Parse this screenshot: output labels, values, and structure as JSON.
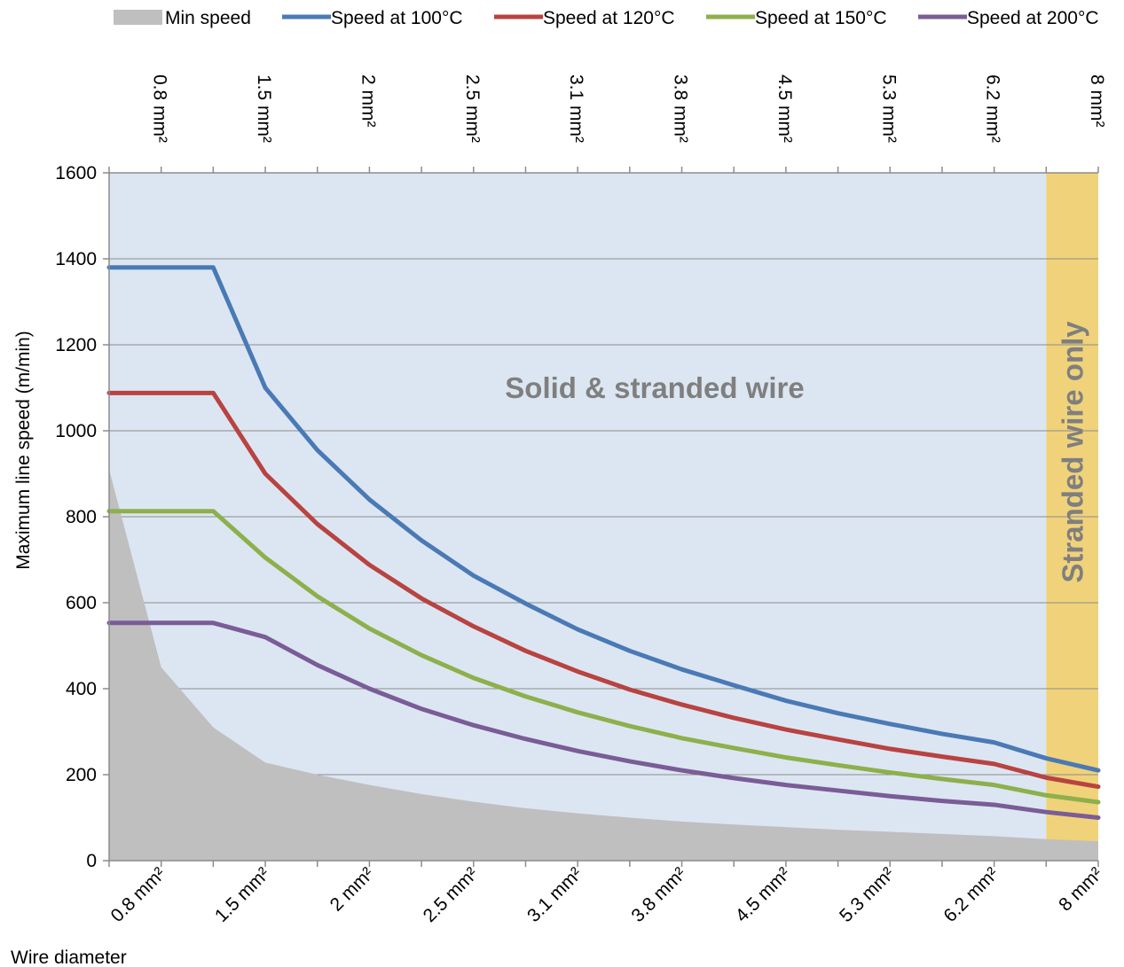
{
  "chart_data": {
    "type": "line",
    "title": "",
    "xlabel": "Wire diameter",
    "ylabel": "Maximum line speed (m/min)",
    "ylim": [
      0,
      1600
    ],
    "yticks": [
      "0",
      "200",
      "400",
      "600",
      "800",
      "1000",
      "1200",
      "1400",
      "1600"
    ],
    "grid": true,
    "legend_position": "top",
    "x_tick_labels": [
      "0.8 mm²",
      "1.5 mm²",
      "2 mm²",
      "2.5 mm²",
      "3.1 mm²",
      "3.8 mm²",
      "4.5 mm²",
      "5.3 mm²",
      "6.2 mm²",
      "8 mm²"
    ],
    "x_tick_positions": [
      1,
      3,
      5,
      7,
      9,
      11,
      13,
      15,
      17,
      19
    ],
    "x_range": [
      0,
      19
    ],
    "x": [
      0,
      1,
      2,
      3,
      4,
      5,
      6,
      7,
      8,
      9,
      10,
      11,
      12,
      13,
      14,
      15,
      16,
      17,
      18,
      19
    ],
    "series": [
      {
        "name": "Min speed",
        "style": "area",
        "color": "#bfbfbf",
        "values": [
          910,
          450,
          310,
          228,
          200,
          176,
          155,
          137,
          122,
          110,
          100,
          91,
          84,
          78,
          72,
          67,
          62,
          57,
          50,
          45
        ]
      },
      {
        "name": "Speed at 100°C",
        "style": "line",
        "color": "#4a7ab5",
        "values": [
          1380,
          1380,
          1380,
          1100,
          955,
          840,
          745,
          663,
          598,
          538,
          488,
          445,
          408,
          372,
          343,
          318,
          295,
          275,
          238,
          210
        ]
      },
      {
        "name": "Speed at 120°C",
        "style": "line",
        "color": "#b84340",
        "values": [
          1088,
          1088,
          1088,
          900,
          783,
          688,
          610,
          545,
          488,
          440,
          398,
          363,
          332,
          305,
          282,
          260,
          242,
          225,
          193,
          172
        ]
      },
      {
        "name": "Speed at 150°C",
        "style": "line",
        "color": "#8db04c",
        "values": [
          813,
          813,
          813,
          705,
          615,
          540,
          478,
          425,
          382,
          345,
          313,
          285,
          262,
          240,
          222,
          205,
          190,
          176,
          152,
          136
        ]
      },
      {
        "name": "Speed at 200°C",
        "style": "line",
        "color": "#7a5c97",
        "values": [
          553,
          553,
          553,
          520,
          455,
          400,
          353,
          315,
          283,
          255,
          231,
          210,
          192,
          176,
          163,
          150,
          139,
          130,
          113,
          100
        ]
      }
    ],
    "regions": [
      {
        "label": "Solid & stranded wire",
        "x_from": 0,
        "x_to": 18,
        "color": "#dce6f2"
      },
      {
        "label": "Stranded wire only",
        "x_from": 18,
        "x_to": 19,
        "color": "#f0d27a"
      }
    ]
  }
}
